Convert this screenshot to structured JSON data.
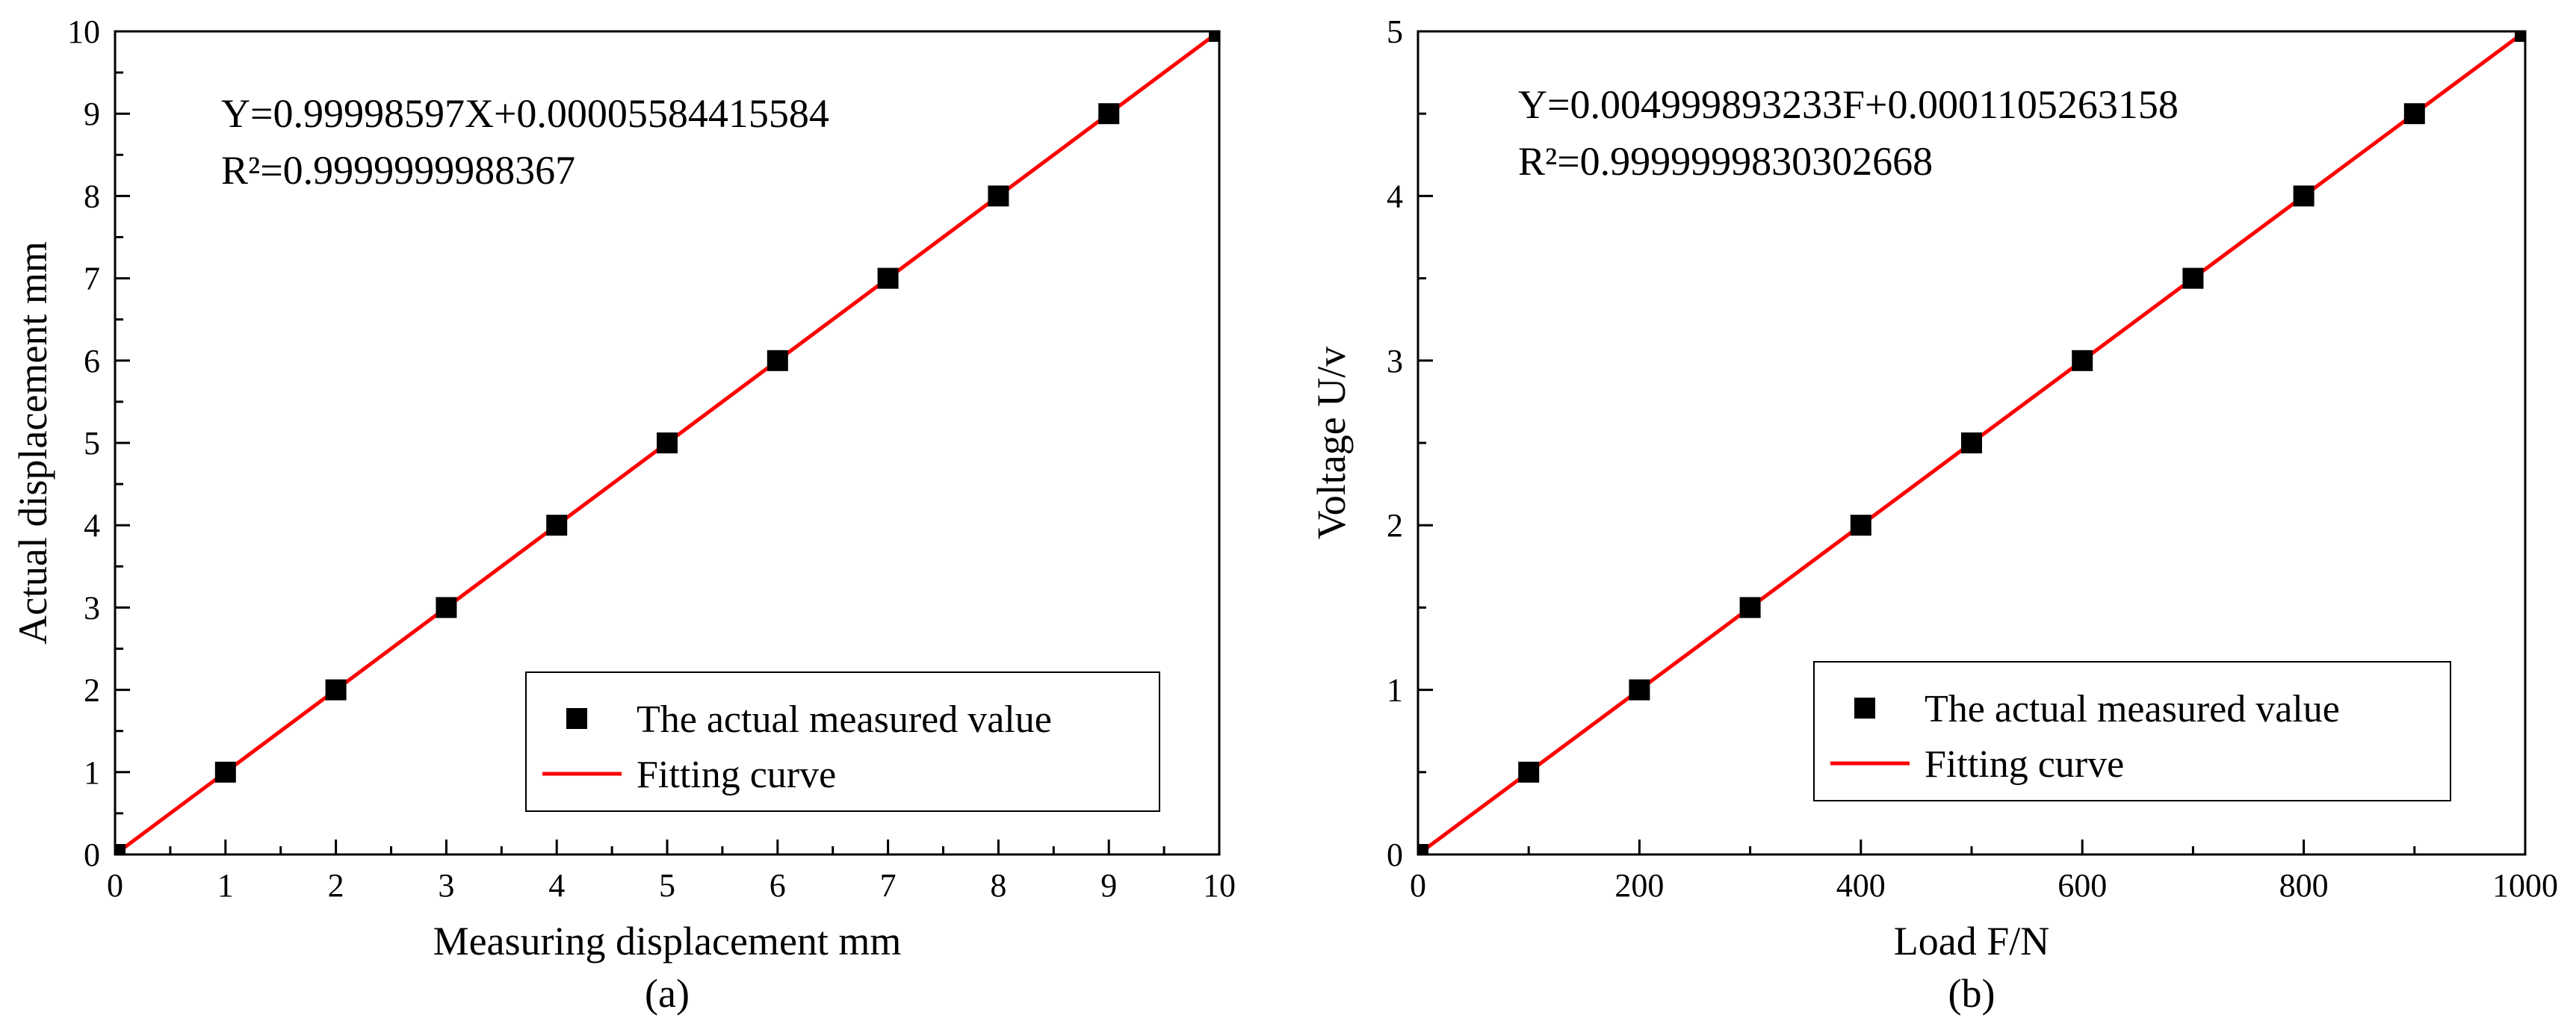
{
  "chart_data": [
    {
      "type": "scatter",
      "panel_label": "(a)",
      "xlabel": "Measuring displacement mm",
      "ylabel": "Actual displacement mm",
      "xlim": [
        0,
        10
      ],
      "ylim": [
        0,
        10
      ],
      "x_ticks": [
        0,
        1,
        2,
        3,
        4,
        5,
        6,
        7,
        8,
        9,
        10
      ],
      "y_ticks": [
        0,
        1,
        2,
        3,
        4,
        5,
        6,
        7,
        8,
        9,
        10
      ],
      "annotations": [
        "Y=0.99998597X+0.00005584415584",
        "R²=0.9999999988367"
      ],
      "legend": [
        "The actual measured value",
        "Fitting curve"
      ],
      "legend_position": "bottom-right",
      "series": [
        {
          "name": "The actual measured value",
          "kind": "points",
          "x": [
            0,
            1,
            2,
            3,
            4,
            5,
            6,
            7,
            8,
            9,
            10
          ],
          "y": [
            0,
            1,
            2,
            3,
            4,
            5,
            6,
            7,
            8,
            9,
            10
          ]
        },
        {
          "name": "Fitting curve",
          "kind": "line",
          "slope": 0.99998597,
          "intercept": 5.584415584e-05,
          "x": [
            0,
            10
          ]
        }
      ]
    },
    {
      "type": "scatter",
      "panel_label": "(b)",
      "xlabel": "Load F/N",
      "ylabel": "Voltage U/v",
      "xlim": [
        0,
        1000
      ],
      "ylim": [
        0,
        5
      ],
      "x_ticks": [
        0,
        200,
        400,
        600,
        800,
        1000
      ],
      "y_ticks": [
        0,
        1,
        2,
        3,
        4,
        5
      ],
      "annotations": [
        "Y=0.004999893233F+0.0001105263158",
        "R²=0.9999999830302668"
      ],
      "legend": [
        "The actual measured value",
        "Fitting curve"
      ],
      "legend_position": "bottom-right",
      "series": [
        {
          "name": "The actual measured value",
          "kind": "points",
          "x": [
            0,
            100,
            200,
            300,
            400,
            500,
            600,
            700,
            800,
            900,
            1000
          ],
          "y": [
            0,
            0.5,
            1,
            1.5,
            2,
            2.5,
            3,
            3.5,
            4,
            4.5,
            5
          ]
        },
        {
          "name": "Fitting curve",
          "kind": "line",
          "slope": 0.004999893233,
          "intercept": 0.0001105263158,
          "x": [
            0,
            1000
          ]
        }
      ]
    }
  ],
  "colors": {
    "points": "#000000",
    "fit_line": "#ff0000",
    "axes": "#000000",
    "background": "#ffffff"
  }
}
